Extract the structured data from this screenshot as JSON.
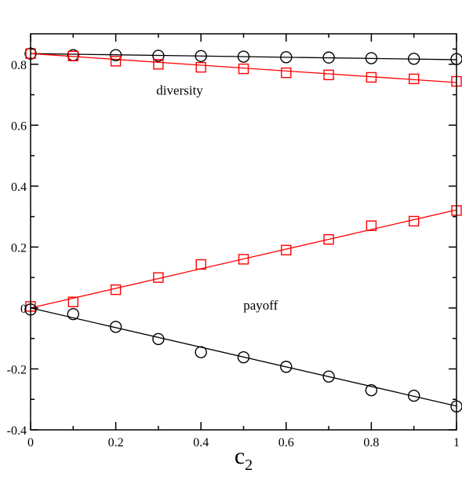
{
  "chart_data": {
    "type": "line",
    "xlabel_main": "c",
    "xlabel_sub": "2",
    "xlim": [
      0,
      1
    ],
    "ylim": [
      -0.4,
      0.9
    ],
    "xticks": [
      0,
      0.2,
      0.4,
      0.6,
      0.8,
      1
    ],
    "xtick_labels": [
      "0",
      "0.2",
      "0.4",
      "0.6",
      "0.8",
      "1"
    ],
    "yticks": [
      -0.4,
      -0.2,
      0,
      0.2,
      0.4,
      0.6,
      0.8
    ],
    "ytick_labels": [
      "-0.4",
      "-0.2",
      "0",
      "0.2",
      "0.4",
      "0.6",
      "0.8"
    ],
    "grid": false,
    "annotations": [
      {
        "text": "diversity",
        "x": 0.35,
        "y": 0.7
      },
      {
        "text": "payoff",
        "x": 0.54,
        "y": -0.005
      }
    ],
    "series": [
      {
        "marker": "circle",
        "color": "#000000",
        "x": [
          0,
          0.1,
          0.2,
          0.3,
          0.4,
          0.5,
          0.6,
          0.7,
          0.8,
          0.9,
          1
        ],
        "values": [
          0.835,
          0.83,
          0.83,
          0.828,
          0.827,
          0.825,
          0.823,
          0.822,
          0.82,
          0.818,
          0.817
        ],
        "fit": [
          [
            0,
            0.835
          ],
          [
            1,
            0.815
          ]
        ]
      },
      {
        "marker": "square",
        "color": "#ff0000",
        "x": [
          0,
          0.1,
          0.2,
          0.3,
          0.4,
          0.5,
          0.6,
          0.7,
          0.8,
          0.9,
          1
        ],
        "values": [
          0.835,
          0.827,
          0.81,
          0.8,
          0.79,
          0.785,
          0.772,
          0.765,
          0.757,
          0.752,
          0.744
        ],
        "fit": [
          [
            0,
            0.835
          ],
          [
            1,
            0.74
          ]
        ]
      },
      {
        "marker": "square",
        "color": "#ff0000",
        "x": [
          0,
          0.1,
          0.2,
          0.3,
          0.4,
          0.5,
          0.6,
          0.7,
          0.8,
          0.9,
          1
        ],
        "values": [
          0.005,
          0.02,
          0.06,
          0.1,
          0.143,
          0.16,
          0.19,
          0.225,
          0.27,
          0.285,
          0.32
        ],
        "fit": [
          [
            0,
            0.0
          ],
          [
            1,
            0.322
          ]
        ]
      },
      {
        "marker": "circle",
        "color": "#000000",
        "x": [
          0,
          0.1,
          0.2,
          0.3,
          0.4,
          0.5,
          0.6,
          0.7,
          0.8,
          0.9,
          1
        ],
        "values": [
          -0.005,
          -0.02,
          -0.062,
          -0.102,
          -0.145,
          -0.162,
          -0.193,
          -0.225,
          -0.27,
          -0.288,
          -0.323
        ],
        "fit": [
          [
            0,
            0.0
          ],
          [
            1,
            -0.322
          ]
        ]
      }
    ]
  }
}
